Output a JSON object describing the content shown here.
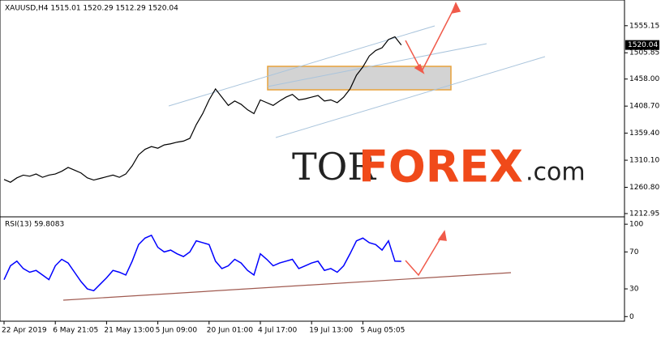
{
  "chart_data": [
    {
      "type": "line",
      "title": "XAUUSD,H4  1515.01 1520.29 1512.29 1520.04",
      "color": "#000000",
      "categories": [
        "22 Apr 2019",
        null,
        null,
        null,
        null,
        null,
        null,
        null,
        "6 May 21:05",
        null,
        null,
        null,
        null,
        null,
        null,
        null,
        "21 May 13:00",
        null,
        null,
        null,
        null,
        null,
        null,
        null,
        "5 Jun 09:00",
        null,
        null,
        null,
        null,
        null,
        null,
        null,
        "20 Jun 01:00",
        null,
        null,
        null,
        null,
        null,
        null,
        null,
        "4 Jul 17:00",
        null,
        null,
        null,
        null,
        null,
        null,
        null,
        "19 Jul 13:00",
        null,
        null,
        null,
        null,
        null,
        null,
        null,
        "5 Aug 05:05",
        null,
        null,
        null,
        null,
        null,
        null
      ],
      "values": [
        1275,
        1270,
        1278,
        1283,
        1281,
        1285,
        1279,
        1283,
        1285,
        1290,
        1297,
        1292,
        1287,
        1278,
        1274,
        1277,
        1280,
        1283,
        1279,
        1285,
        1300,
        1320,
        1330,
        1335,
        1332,
        1338,
        1340,
        1343,
        1345,
        1350,
        1375,
        1395,
        1420,
        1440,
        1425,
        1410,
        1418,
        1412,
        1402,
        1395,
        1420,
        1415,
        1410,
        1418,
        1425,
        1430,
        1420,
        1422,
        1425,
        1428,
        1418,
        1420,
        1415,
        1425,
        1440,
        1465,
        1480,
        1500,
        1510,
        1515,
        1530,
        1535,
        1520
      ],
      "ylim": [
        1207,
        1602
      ],
      "yticks": [
        1555.15,
        1505.85,
        {
          "value": 1458,
          "label": "1458.00"
        },
        {
          "value": 1408.7,
          "label": "1408.70"
        },
        {
          "value": 1359.4,
          "label": "1359.40"
        },
        {
          "value": 1310.1,
          "label": "1310.10"
        },
        {
          "value": 1260.8,
          "label": "1260.80"
        },
        1212.95
      ],
      "current_price": 1520.04
    },
    {
      "type": "line",
      "title": "RSI(13) 59.8083",
      "color": "#0000ff",
      "values": [
        40,
        55,
        60,
        52,
        48,
        50,
        45,
        40,
        55,
        62,
        58,
        48,
        38,
        30,
        28,
        35,
        42,
        50,
        48,
        45,
        60,
        78,
        85,
        88,
        75,
        70,
        72,
        68,
        65,
        70,
        82,
        80,
        78,
        60,
        52,
        55,
        62,
        58,
        50,
        45,
        68,
        62,
        55,
        58,
        60,
        62,
        52,
        55,
        58,
        60,
        50,
        52,
        48,
        55,
        68,
        82,
        85,
        80,
        78,
        72,
        82,
        60,
        59.8
      ],
      "ylim": [
        -5,
        108
      ],
      "yticks": [
        100,
        70,
        30,
        0
      ]
    }
  ],
  "watermark": {
    "left": "TOR",
    "main": "FOREX",
    "right": ".com"
  }
}
